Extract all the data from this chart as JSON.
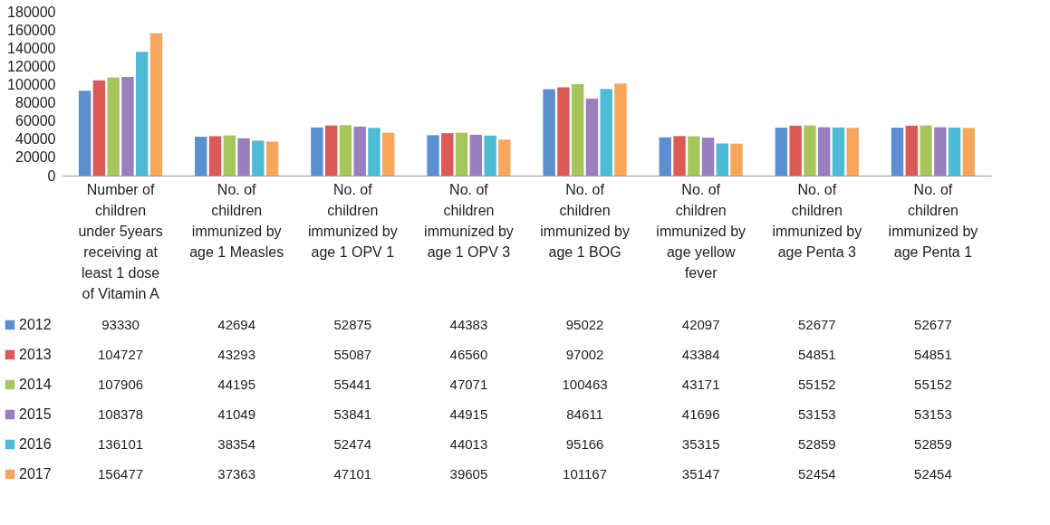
{
  "chart_data": {
    "type": "bar",
    "categories": [
      "Number of children under 5years receiving at least 1 dose of Vitamin A",
      "No. of children immunized by age 1 Measles",
      "No. of children immunized by age 1 OPV 1",
      "No. of children immunized by age 1 OPV 3",
      "No. of children immunized by age 1 BOG",
      "No. of children immunized by age yellow fever",
      "No. of children immunized by age Penta 3",
      "No. of children immunized by age Penta 1"
    ],
    "series": [
      {
        "name": "2012",
        "color": "#5b8fd0",
        "values": [
          93330,
          42694,
          52875,
          44383,
          95022,
          42097,
          52677,
          52677
        ]
      },
      {
        "name": "2013",
        "color": "#dc5a55",
        "values": [
          104727,
          43293,
          55087,
          46560,
          97002,
          43384,
          54851,
          54851
        ]
      },
      {
        "name": "2014",
        "color": "#a6c65c",
        "values": [
          107906,
          44195,
          55441,
          47071,
          100463,
          43171,
          55152,
          55152
        ]
      },
      {
        "name": "2015",
        "color": "#9a7fc0",
        "values": [
          108378,
          41049,
          53841,
          44915,
          84611,
          41696,
          53153,
          53153
        ]
      },
      {
        "name": "2016",
        "color": "#4bbcd4",
        "values": [
          136101,
          38354,
          52474,
          44013,
          95166,
          35315,
          52859,
          52859
        ]
      },
      {
        "name": "2017",
        "color": "#f8a65c",
        "values": [
          156477,
          37363,
          47101,
          39605,
          101167,
          35147,
          52454,
          52454
        ]
      }
    ],
    "ylim": [
      0,
      180000
    ],
    "yticks": [
      0,
      20000,
      40000,
      60000,
      80000,
      100000,
      120000,
      140000,
      160000,
      180000
    ],
    "grid": false,
    "legend": "bottom left",
    "data_labels": true
  }
}
